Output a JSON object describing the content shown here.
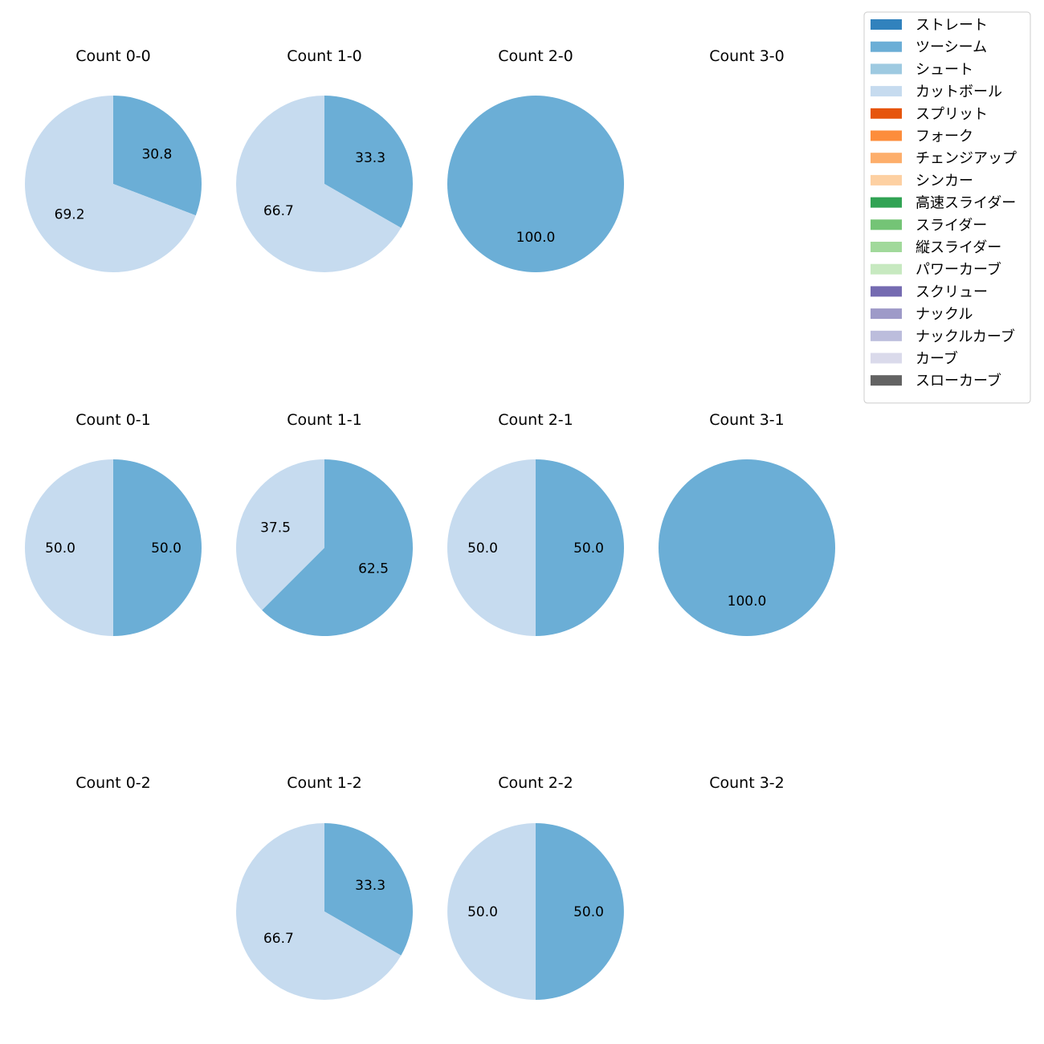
{
  "figure": {
    "legend": {
      "placement": "top-right",
      "entries": [
        {
          "label": "ストレート",
          "color": "#3182bd"
        },
        {
          "label": "ツーシーム",
          "color": "#6baed6"
        },
        {
          "label": "シュート",
          "color": "#9ecae1"
        },
        {
          "label": "カットボール",
          "color": "#c6dbef"
        },
        {
          "label": "スプリット",
          "color": "#e6550d"
        },
        {
          "label": "フォーク",
          "color": "#fd8d3c"
        },
        {
          "label": "チェンジアップ",
          "color": "#fdae6b"
        },
        {
          "label": "シンカー",
          "color": "#fdd0a2"
        },
        {
          "label": "高速スライダー",
          "color": "#31a354"
        },
        {
          "label": "スライダー",
          "color": "#74c476"
        },
        {
          "label": "縦スライダー",
          "color": "#a1d99b"
        },
        {
          "label": "パワーカーブ",
          "color": "#c7e9c0"
        },
        {
          "label": "スクリュー",
          "color": "#756bb1"
        },
        {
          "label": "ナックル",
          "color": "#9e9ac8"
        },
        {
          "label": "ナックルカーブ",
          "color": "#bcbddc"
        },
        {
          "label": "カーブ",
          "color": "#dadaeb"
        },
        {
          "label": "スローカーブ",
          "color": "#636363"
        }
      ]
    }
  },
  "chart_data": [
    {
      "type": "pie",
      "title": "Count 0-0",
      "slices": [
        {
          "label": "ツーシーム",
          "value": 30.8
        },
        {
          "label": "カットボール",
          "value": 69.2
        }
      ]
    },
    {
      "type": "pie",
      "title": "Count 1-0",
      "slices": [
        {
          "label": "ツーシーム",
          "value": 33.3
        },
        {
          "label": "カットボール",
          "value": 66.7
        }
      ]
    },
    {
      "type": "pie",
      "title": "Count 2-0",
      "slices": [
        {
          "label": "ツーシーム",
          "value": 100.0
        }
      ]
    },
    {
      "type": "pie",
      "title": "Count 3-0",
      "slices": []
    },
    {
      "type": "pie",
      "title": "Count 0-1",
      "slices": [
        {
          "label": "ツーシーム",
          "value": 50.0
        },
        {
          "label": "カットボール",
          "value": 50.0
        }
      ]
    },
    {
      "type": "pie",
      "title": "Count 1-1",
      "slices": [
        {
          "label": "ツーシーム",
          "value": 62.5
        },
        {
          "label": "カットボール",
          "value": 37.5
        }
      ]
    },
    {
      "type": "pie",
      "title": "Count 2-1",
      "slices": [
        {
          "label": "ツーシーム",
          "value": 50.0
        },
        {
          "label": "カットボール",
          "value": 50.0
        }
      ]
    },
    {
      "type": "pie",
      "title": "Count 3-1",
      "slices": [
        {
          "label": "ツーシーム",
          "value": 100.0
        }
      ]
    },
    {
      "type": "pie",
      "title": "Count 0-2",
      "slices": []
    },
    {
      "type": "pie",
      "title": "Count 1-2",
      "slices": [
        {
          "label": "ツーシーム",
          "value": 33.3
        },
        {
          "label": "カットボール",
          "value": 66.7
        }
      ]
    },
    {
      "type": "pie",
      "title": "Count 2-2",
      "slices": [
        {
          "label": "ツーシーム",
          "value": 50.0
        },
        {
          "label": "カットボール",
          "value": 50.0
        }
      ]
    },
    {
      "type": "pie",
      "title": "Count 3-2",
      "slices": []
    }
  ]
}
